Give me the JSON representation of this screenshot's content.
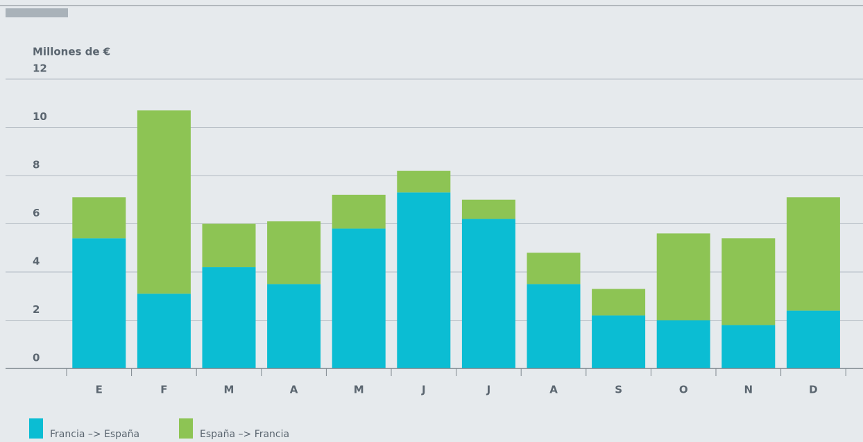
{
  "chart_data": {
    "type": "stacked_bar",
    "y_label": "Millones de €",
    "categories": [
      "E",
      "F",
      "M",
      "A",
      "M",
      "J",
      "J",
      "A",
      "S",
      "O",
      "N",
      "D"
    ],
    "series": [
      {
        "name": "Francia –> España",
        "color": "#0bbdd3",
        "values": [
          5.4,
          3.1,
          4.2,
          3.5,
          5.8,
          7.3,
          6.2,
          3.5,
          2.2,
          2.0,
          1.8,
          2.4
        ]
      },
      {
        "name": "España –> Francia",
        "color": "#8dc454",
        "values": [
          1.7,
          7.6,
          1.8,
          2.6,
          1.4,
          0.9,
          0.8,
          1.3,
          1.1,
          3.6,
          3.6,
          4.7
        ]
      }
    ],
    "ylim": [
      0,
      12
    ],
    "yticks": [
      0,
      2,
      4,
      6,
      8,
      10,
      12
    ],
    "grid": true
  }
}
